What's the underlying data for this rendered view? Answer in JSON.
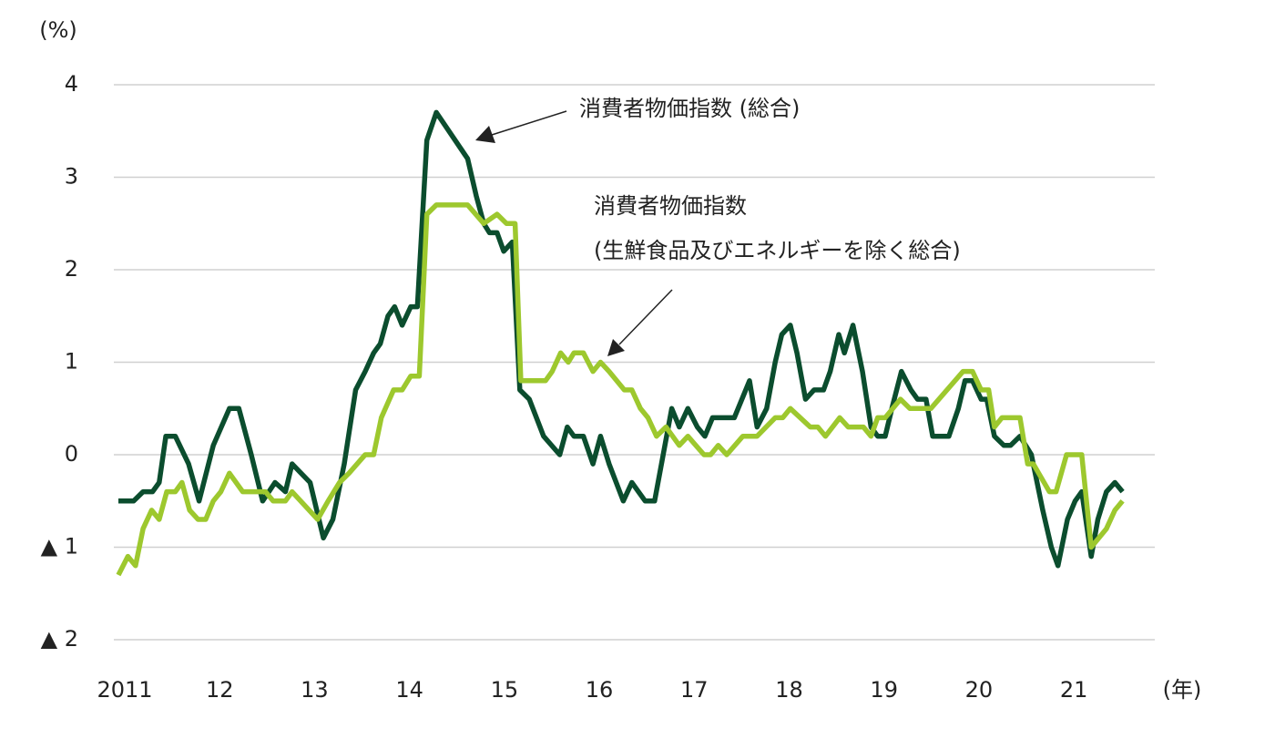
{
  "chart_data": {
    "type": "line",
    "y_unit_label": "(%)",
    "x_unit_label": "(年)",
    "annotations": [
      "消費者物価指数 (総合)",
      "消費者物価指数",
      "(生鮮食品及びエネルギーを除く総合)"
    ],
    "xlim": [
      2011,
      2021.92
    ],
    "xticks": [
      {
        "value": 2011,
        "label": "2011"
      },
      {
        "value": 2012,
        "label": "12"
      },
      {
        "value": 2013,
        "label": "13"
      },
      {
        "value": 2014,
        "label": "14"
      },
      {
        "value": 2015,
        "label": "15"
      },
      {
        "value": 2016,
        "label": "16"
      },
      {
        "value": 2017,
        "label": "17"
      },
      {
        "value": 2018,
        "label": "18"
      },
      {
        "value": 2019,
        "label": "19"
      },
      {
        "value": 2020,
        "label": "20"
      },
      {
        "value": 2021,
        "label": "21"
      }
    ],
    "ylim": [
      -2,
      4
    ],
    "yticks": [
      4,
      3,
      2,
      1,
      0,
      {
        "value": -1,
        "label": "▲ 1"
      },
      {
        "value": -2,
        "label": "▲ 2"
      }
    ],
    "grid": true,
    "series": [
      {
        "color": "#0b4d2e",
        "x": [
          2011.0,
          2011.16,
          2011.26,
          2011.36,
          2011.43,
          2011.5,
          2011.6,
          2011.74,
          2011.85,
          2012.0,
          2012.17,
          2012.27,
          2012.4,
          2012.52,
          2012.65,
          2012.76,
          2012.83,
          2013.02,
          2013.16,
          2013.26,
          2013.38,
          2013.5,
          2013.6,
          2013.69,
          2013.76,
          2013.84,
          2013.91,
          2013.99,
          2014.08,
          2014.15,
          2014.25,
          2014.35,
          2014.68,
          2014.77,
          2014.85,
          2014.91,
          2014.99,
          2015.06,
          2015.15,
          2015.23,
          2015.33,
          2015.48,
          2015.65,
          2015.73,
          2015.8,
          2015.9,
          2016.0,
          2016.08,
          2016.17,
          2016.32,
          2016.41,
          2016.55,
          2016.65,
          2016.74,
          2016.83,
          2016.91,
          2017.0,
          2017.1,
          2017.18,
          2017.26,
          2017.49,
          2017.65,
          2017.73,
          2017.83,
          2017.92,
          2017.99,
          2018.08,
          2018.15,
          2018.24,
          2018.33,
          2018.43,
          2018.5,
          2018.59,
          2018.65,
          2018.74,
          2018.84,
          2018.93,
          2019.0,
          2019.08,
          2019.15,
          2019.25,
          2019.35,
          2019.42,
          2019.51,
          2019.58,
          2019.75,
          2019.85,
          2019.92,
          2020.0,
          2020.09,
          2020.15,
          2020.23,
          2020.33,
          2020.4,
          2020.5,
          2020.62,
          2020.74,
          2020.83,
          2020.9,
          2021.0,
          2021.08,
          2021.15,
          2021.25,
          2021.32,
          2021.41,
          2021.5,
          2021.58
        ],
        "values": [
          -0.5,
          -0.5,
          -0.4,
          -0.4,
          -0.3,
          0.2,
          0.2,
          -0.1,
          -0.5,
          0.1,
          0.5,
          0.5,
          0.0,
          -0.5,
          -0.3,
          -0.4,
          -0.1,
          -0.3,
          -0.9,
          -0.7,
          -0.1,
          0.7,
          0.9,
          1.1,
          1.2,
          1.5,
          1.6,
          1.4,
          1.6,
          1.6,
          3.4,
          3.7,
          3.2,
          2.8,
          2.5,
          2.4,
          2.4,
          2.2,
          2.3,
          0.7,
          0.6,
          0.2,
          0.0,
          0.3,
          0.2,
          0.2,
          -0.1,
          0.2,
          -0.1,
          -0.5,
          -0.3,
          -0.5,
          -0.5,
          0.0,
          0.5,
          0.3,
          0.5,
          0.3,
          0.2,
          0.4,
          0.4,
          0.8,
          0.3,
          0.5,
          1.0,
          1.3,
          1.4,
          1.1,
          0.6,
          0.7,
          0.7,
          0.9,
          1.3,
          1.1,
          1.4,
          0.9,
          0.3,
          0.2,
          0.2,
          0.5,
          0.9,
          0.7,
          0.6,
          0.6,
          0.2,
          0.2,
          0.5,
          0.8,
          0.8,
          0.6,
          0.6,
          0.2,
          0.1,
          0.1,
          0.2,
          0.0,
          -0.6,
          -1.0,
          -1.2,
          -0.7,
          -0.5,
          -0.4,
          -1.1,
          -0.7,
          -0.4,
          -0.3,
          -0.4
        ]
      },
      {
        "color": "#9dc82e",
        "x": [
          2011.0,
          2011.1,
          2011.18,
          2011.26,
          2011.35,
          2011.43,
          2011.51,
          2011.6,
          2011.67,
          2011.75,
          2011.84,
          2011.92,
          2012.0,
          2012.08,
          2012.17,
          2012.31,
          2012.55,
          2012.63,
          2012.76,
          2012.83,
          2013.1,
          2013.21,
          2013.33,
          2013.43,
          2013.6,
          2013.69,
          2013.77,
          2013.9,
          2013.99,
          2014.08,
          2014.17,
          2014.25,
          2014.35,
          2014.68,
          2014.85,
          2014.99,
          2015.09,
          2015.18,
          2015.24,
          2015.5,
          2015.57,
          2015.66,
          2015.74,
          2015.8,
          2015.9,
          2016.0,
          2016.08,
          2016.17,
          2016.33,
          2016.41,
          2016.5,
          2016.58,
          2016.67,
          2016.77,
          2016.91,
          2017.0,
          2017.17,
          2017.24,
          2017.32,
          2017.41,
          2017.58,
          2017.73,
          2017.92,
          2018.0,
          2018.08,
          2018.29,
          2018.37,
          2018.45,
          2018.6,
          2018.69,
          2018.85,
          2018.93,
          2019.0,
          2019.08,
          2019.24,
          2019.34,
          2019.56,
          2019.9,
          2020.0,
          2020.09,
          2020.17,
          2020.23,
          2020.31,
          2020.5,
          2020.58,
          2020.64,
          2020.81,
          2020.88,
          2020.99,
          2021.15,
          2021.25,
          2021.41,
          2021.5,
          2021.58
        ],
        "values": [
          -1.3,
          -1.1,
          -1.2,
          -0.8,
          -0.6,
          -0.7,
          -0.4,
          -0.4,
          -0.3,
          -0.6,
          -0.7,
          -0.7,
          -0.5,
          -0.4,
          -0.2,
          -0.4,
          -0.4,
          -0.5,
          -0.5,
          -0.4,
          -0.7,
          -0.5,
          -0.3,
          -0.2,
          0.0,
          0.0,
          0.4,
          0.7,
          0.7,
          0.85,
          0.85,
          2.6,
          2.7,
          2.7,
          2.5,
          2.6,
          2.5,
          2.5,
          0.8,
          0.8,
          0.9,
          1.1,
          1.0,
          1.1,
          1.1,
          0.9,
          1.0,
          0.9,
          0.7,
          0.7,
          0.5,
          0.4,
          0.2,
          0.3,
          0.1,
          0.2,
          0.0,
          0.0,
          0.1,
          0.0,
          0.2,
          0.2,
          0.4,
          0.4,
          0.5,
          0.3,
          0.3,
          0.2,
          0.4,
          0.3,
          0.3,
          0.2,
          0.4,
          0.4,
          0.6,
          0.5,
          0.5,
          0.9,
          0.9,
          0.7,
          0.7,
          0.3,
          0.4,
          0.4,
          -0.1,
          -0.1,
          -0.4,
          -0.4,
          0.0,
          0.0,
          -1.0,
          -0.8,
          -0.6,
          -0.5
        ]
      }
    ]
  }
}
